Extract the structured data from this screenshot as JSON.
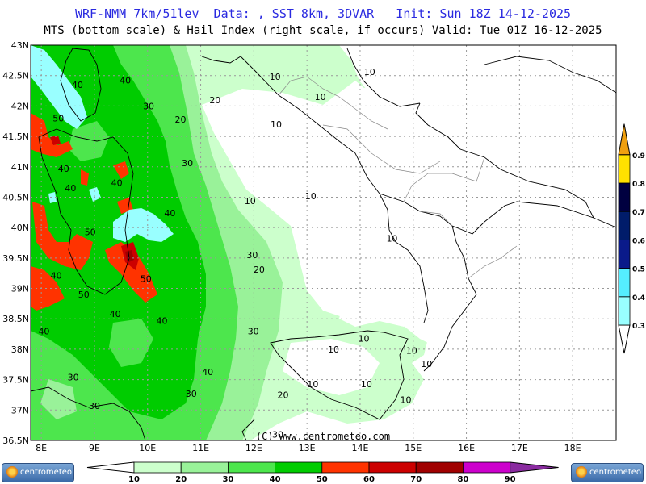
{
  "header": {
    "line1": "WRF-NMM 7km/51lev  Data: , SST 8km, 3DVAR   Init: Sun 18Z 14-12-2025",
    "line2": "MTS (bottom scale) & Hail Index (right scale, if occurs) Valid: Tue 01Z 16-12-2025"
  },
  "map": {
    "lat_labels": [
      "43N",
      "42.5N",
      "42N",
      "41.5N",
      "41N",
      "40.5N",
      "40N",
      "39.5N",
      "39N",
      "38.5N",
      "38N",
      "37.5N",
      "37N",
      "36.5N"
    ],
    "lon_labels": [
      "8E",
      "9E",
      "10E",
      "11E",
      "12E",
      "13E",
      "14E",
      "15E",
      "16E",
      "17E",
      "18E"
    ],
    "copyright": "(C) www.centrometeo.com",
    "contour_labels": [
      {
        "t": "40",
        "lon": 9.58,
        "lat": 42.42
      },
      {
        "t": "40",
        "lon": 8.68,
        "lat": 42.35
      },
      {
        "t": "30",
        "lon": 10.02,
        "lat": 42.0
      },
      {
        "t": "20",
        "lon": 11.27,
        "lat": 42.1
      },
      {
        "t": "20",
        "lon": 10.62,
        "lat": 41.78
      },
      {
        "t": "10",
        "lon": 12.42,
        "lat": 41.7
      },
      {
        "t": "10",
        "lon": 12.4,
        "lat": 42.48
      },
      {
        "t": "10",
        "lon": 13.25,
        "lat": 42.15
      },
      {
        "t": "10",
        "lon": 14.18,
        "lat": 42.56
      },
      {
        "t": "50",
        "lon": 8.32,
        "lat": 41.8
      },
      {
        "t": "40",
        "lon": 8.42,
        "lat": 40.97
      },
      {
        "t": "40",
        "lon": 8.55,
        "lat": 40.65
      },
      {
        "t": "30",
        "lon": 10.75,
        "lat": 41.06
      },
      {
        "t": "40",
        "lon": 9.42,
        "lat": 40.74
      },
      {
        "t": "10",
        "lon": 11.93,
        "lat": 40.44
      },
      {
        "t": "10",
        "lon": 13.07,
        "lat": 40.52
      },
      {
        "t": "40",
        "lon": 10.42,
        "lat": 40.24
      },
      {
        "t": "50",
        "lon": 8.92,
        "lat": 39.93
      },
      {
        "t": "10",
        "lon": 14.6,
        "lat": 39.82
      },
      {
        "t": "30",
        "lon": 11.97,
        "lat": 39.55
      },
      {
        "t": "20",
        "lon": 12.1,
        "lat": 39.31
      },
      {
        "t": "40",
        "lon": 8.28,
        "lat": 39.21
      },
      {
        "t": "50",
        "lon": 9.97,
        "lat": 39.16
      },
      {
        "t": "50",
        "lon": 8.8,
        "lat": 38.9
      },
      {
        "t": "40",
        "lon": 9.39,
        "lat": 38.58
      },
      {
        "t": "40",
        "lon": 10.27,
        "lat": 38.47
      },
      {
        "t": "40",
        "lon": 8.05,
        "lat": 38.3
      },
      {
        "t": "30",
        "lon": 11.99,
        "lat": 38.3
      },
      {
        "t": "10",
        "lon": 14.07,
        "lat": 38.18
      },
      {
        "t": "10",
        "lon": 13.5,
        "lat": 38.0
      },
      {
        "t": "10",
        "lon": 14.97,
        "lat": 37.98
      },
      {
        "t": "10",
        "lon": 15.25,
        "lat": 37.76
      },
      {
        "t": "40",
        "lon": 11.13,
        "lat": 37.63
      },
      {
        "t": "30",
        "lon": 8.6,
        "lat": 37.54
      },
      {
        "t": "10",
        "lon": 13.11,
        "lat": 37.43
      },
      {
        "t": "10",
        "lon": 14.12,
        "lat": 37.43
      },
      {
        "t": "30",
        "lon": 10.82,
        "lat": 37.27
      },
      {
        "t": "20",
        "lon": 12.55,
        "lat": 37.25
      },
      {
        "t": "10",
        "lon": 14.86,
        "lat": 37.17
      },
      {
        "t": "30",
        "lon": 9.0,
        "lat": 37.07
      },
      {
        "t": "30",
        "lon": 12.45,
        "lat": 36.6
      }
    ]
  },
  "mts_scale": {
    "ticks": [
      "10",
      "20",
      "30",
      "40",
      "50",
      "60",
      "70",
      "80",
      "90"
    ],
    "colors": [
      "#ccffcc",
      "#99f299",
      "#4de64d",
      "#00cc00",
      "#ff3300",
      "#cc0000",
      "#a00000",
      "#cc00cc",
      "#8a2ba0"
    ]
  },
  "hail_scale": {
    "ticks": [
      "0.3",
      "0.4",
      "0.5",
      "0.6",
      "0.7",
      "0.8",
      "0.9"
    ],
    "colors": [
      "#99ffff",
      "#55eeff",
      "#0a1a8a",
      "#001c6a",
      "#000040",
      "#ffe100",
      "#f0a010"
    ]
  },
  "logos": {
    "left": "centrometeo",
    "right": "centrometeo"
  }
}
